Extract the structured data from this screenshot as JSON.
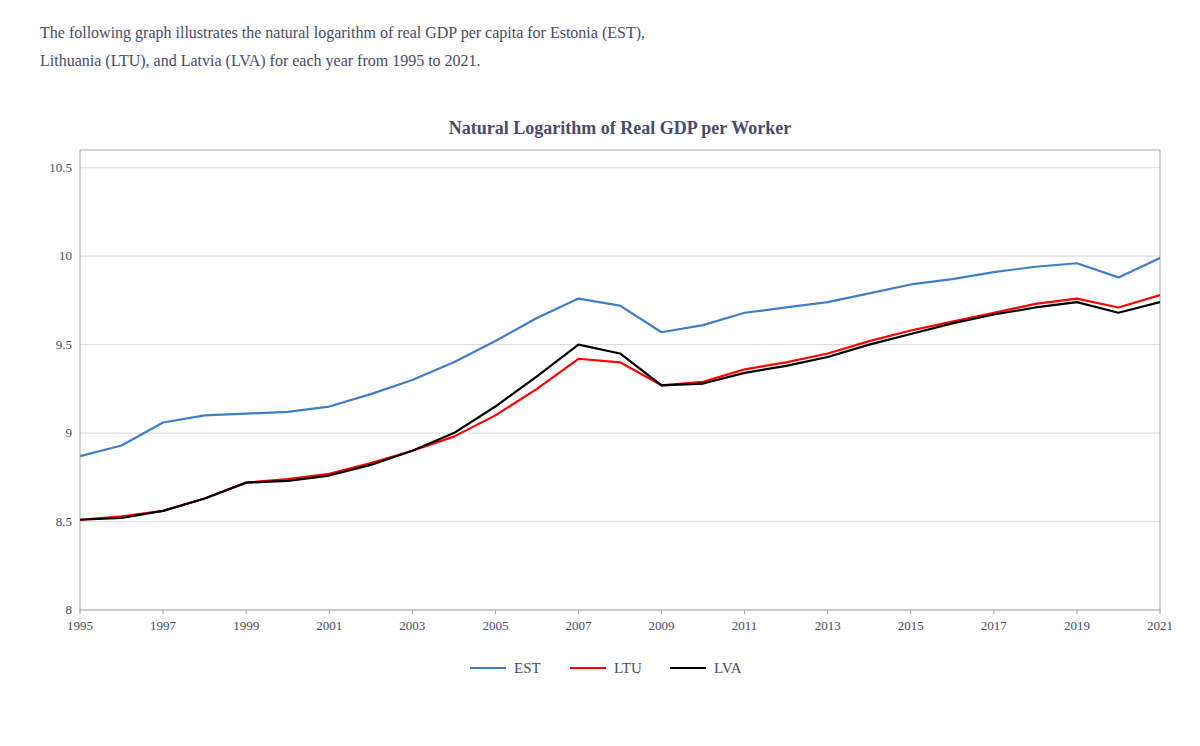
{
  "chart_data": {
    "type": "line",
    "title": "Natural Logarithm of Real GDP per Worker",
    "subtitle": [
      "The following graph illustrates the natural logarithm of real GDP per capita for Estonia (EST),",
      "Lithuania (LTU), and Latvia (LVA) for each year from 1995 to 2021."
    ],
    "x": [
      1995,
      1996,
      1997,
      1998,
      1999,
      2000,
      2001,
      2002,
      2003,
      2004,
      2005,
      2006,
      2007,
      2008,
      2009,
      2010,
      2011,
      2012,
      2013,
      2014,
      2015,
      2016,
      2017,
      2018,
      2019,
      2020,
      2021
    ],
    "series": [
      {
        "name": "EST",
        "color": "#3F7EC5",
        "values": [
          8.87,
          8.93,
          9.06,
          9.1,
          9.11,
          9.12,
          9.15,
          9.22,
          9.3,
          9.4,
          9.52,
          9.65,
          9.76,
          9.72,
          9.57,
          9.61,
          9.68,
          9.71,
          9.74,
          9.79,
          9.84,
          9.87,
          9.91,
          9.94,
          9.96,
          9.88,
          9.99
        ]
      },
      {
        "name": "LTU",
        "color": "#FF0000",
        "values": [
          8.51,
          8.53,
          8.56,
          8.63,
          8.72,
          8.74,
          8.77,
          8.83,
          8.9,
          8.98,
          9.1,
          9.25,
          9.42,
          9.4,
          9.27,
          9.29,
          9.36,
          9.4,
          9.45,
          9.52,
          9.58,
          9.63,
          9.68,
          9.73,
          9.76,
          9.71,
          9.78
        ]
      },
      {
        "name": "LVA",
        "color": "#000000",
        "values": [
          8.51,
          8.52,
          8.56,
          8.63,
          8.72,
          8.73,
          8.76,
          8.82,
          8.9,
          9.0,
          9.15,
          9.32,
          9.5,
          9.45,
          9.27,
          9.28,
          9.34,
          9.38,
          9.43,
          9.5,
          9.56,
          9.62,
          9.67,
          9.71,
          9.74,
          9.68,
          9.74
        ]
      }
    ],
    "xlim": [
      1995,
      2021
    ],
    "xticks": [
      1995,
      1997,
      1999,
      2001,
      2003,
      2005,
      2007,
      2009,
      2011,
      2013,
      2015,
      2017,
      2019,
      2021
    ],
    "ylim": [
      8,
      10.6
    ],
    "yticks": [
      8,
      8.5,
      9,
      9.5,
      10,
      10.5
    ],
    "grid": true,
    "legend": "bottom"
  }
}
